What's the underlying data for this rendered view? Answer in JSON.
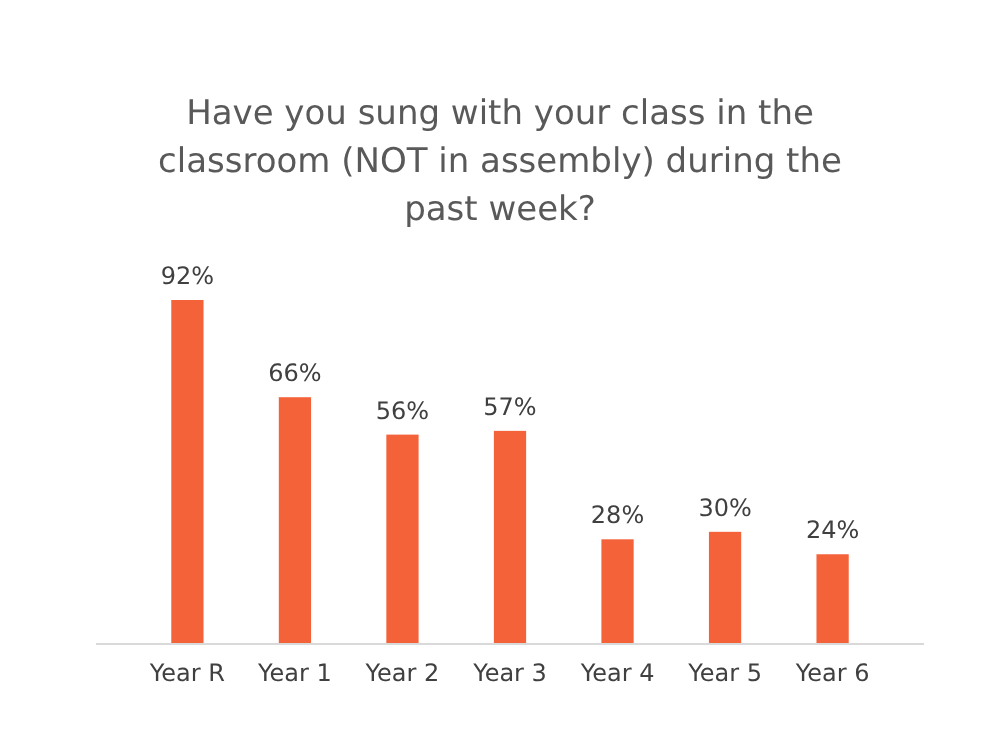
{
  "chart_data": {
    "type": "bar",
    "title": "Have you sung with your class in the classroom (NOT in assembly) during the past week?",
    "categories": [
      "Year R",
      "Year 1",
      "Year 2",
      "Year 3",
      "Year 4",
      "Year 5",
      "Year 6"
    ],
    "values": [
      92,
      66,
      56,
      57,
      28,
      30,
      24
    ],
    "value_labels": [
      "92%",
      "66%",
      "56%",
      "57%",
      "28%",
      "30%",
      "24%"
    ],
    "color": "#f4623a",
    "grid": false
  }
}
